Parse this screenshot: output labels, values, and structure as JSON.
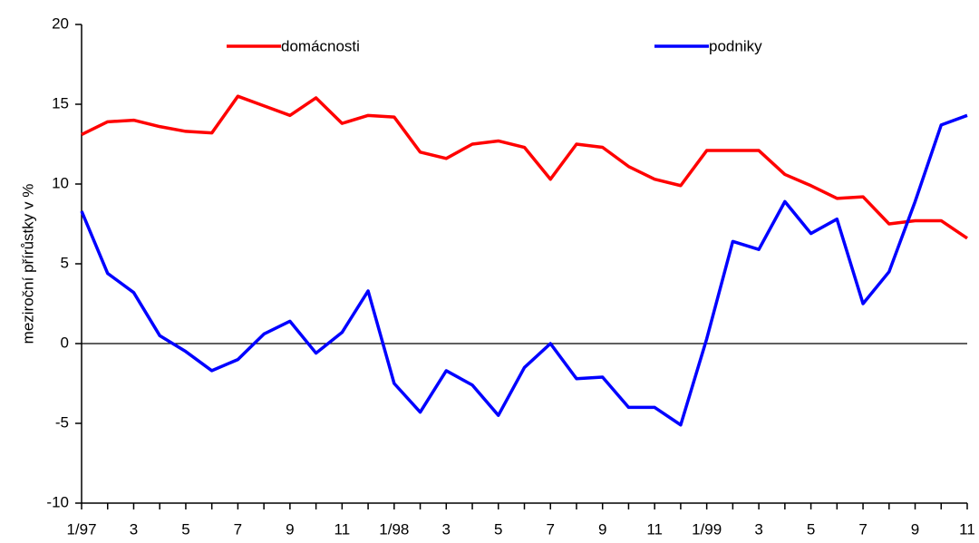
{
  "chart_data": {
    "type": "line",
    "y_label": "meziroční přírůstky v %",
    "categories": [
      "1/97",
      null,
      "3",
      null,
      "5",
      null,
      "7",
      null,
      "9",
      null,
      "11",
      null,
      "1/98",
      null,
      "3",
      null,
      "5",
      null,
      "7",
      null,
      "9",
      null,
      "11",
      null,
      "1/99",
      null,
      "3",
      null,
      "5",
      null,
      "7",
      null,
      "9",
      null,
      "11"
    ],
    "series": [
      {
        "name": "domácnosti",
        "color": "#ff0000",
        "values": [
          13.1,
          13.9,
          14.0,
          13.6,
          13.3,
          13.2,
          15.5,
          14.9,
          14.3,
          15.4,
          13.8,
          14.3,
          14.2,
          12.0,
          11.6,
          12.5,
          12.7,
          12.3,
          10.3,
          12.5,
          12.3,
          11.1,
          10.3,
          9.9,
          12.1,
          12.1,
          12.1,
          10.6,
          9.9,
          9.1,
          9.2,
          7.5,
          7.7,
          7.7,
          6.6
        ]
      },
      {
        "name": "podniky",
        "color": "#0000ff",
        "values": [
          8.3,
          4.4,
          3.2,
          0.5,
          -0.5,
          -1.7,
          -1.0,
          0.6,
          1.4,
          -0.6,
          0.7,
          3.3,
          -2.5,
          -4.3,
          -1.7,
          -2.6,
          -4.5,
          -1.5,
          0.0,
          -2.2,
          -2.1,
          -4.0,
          -4.0,
          -5.1,
          0.3,
          6.4,
          5.9,
          8.9,
          6.9,
          7.8,
          2.5,
          4.5,
          8.9,
          13.7,
          14.3
        ]
      }
    ],
    "ylim": [
      -10,
      20
    ],
    "yticks": [
      -10,
      -5,
      0,
      5,
      10,
      15,
      20
    ],
    "grid": false,
    "legend": "top"
  }
}
